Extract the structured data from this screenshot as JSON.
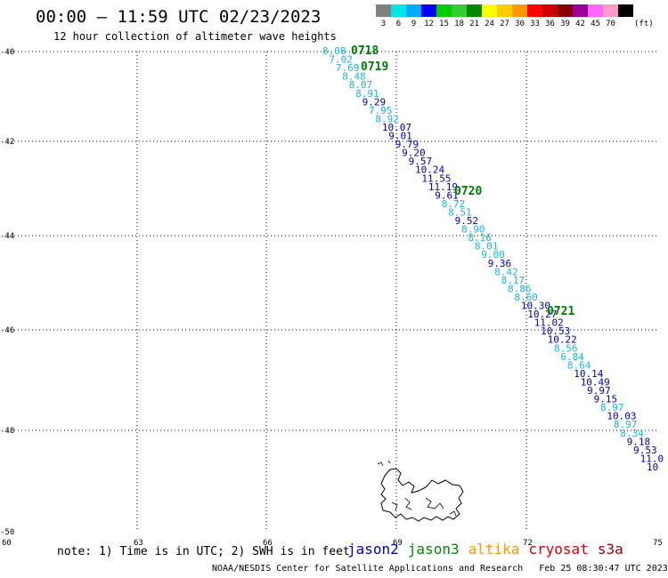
{
  "header": {
    "title": "00:00 – 11:59 UTC 02/23/2023",
    "subtitle": "12 hour collection of altimeter wave heights"
  },
  "scale": {
    "colors": [
      "#808080",
      "#00e5e5",
      "#00aaff",
      "#0000ff",
      "#00cc00",
      "#33cc33",
      "#008800",
      "#ffff00",
      "#ffcc00",
      "#ff9900",
      "#ff0000",
      "#cc0000",
      "#880000",
      "#990099",
      "#ff66ff",
      "#ff99cc",
      "#000000"
    ],
    "labels": [
      "3",
      "6",
      "9",
      "12",
      "15",
      "18",
      "21",
      "24",
      "27",
      "30",
      "33",
      "36",
      "39",
      "42",
      "45",
      "70",
      ""
    ],
    "unit": "(ft)"
  },
  "axes": {
    "lon_labels": [
      "60",
      "63",
      "66",
      "69",
      "72",
      "75"
    ],
    "lat_labels": [
      "-40",
      "-42",
      "-44",
      "-46",
      "-48",
      "-50"
    ]
  },
  "time_marks": [
    "0718",
    "0719",
    "0720",
    "0721"
  ],
  "track": {
    "values": [
      "8.08",
      "7.02",
      "7.69",
      "8.48",
      "8.07",
      "8.91",
      "9.29",
      "7.95",
      "8.92",
      "10.07",
      "9.01",
      "9.79",
      "9.20",
      "9.57",
      "10.24",
      "11.55",
      "11.19",
      "9.61",
      "8.72",
      "8.51",
      "9.52",
      "8.90",
      "8.16",
      "8.01",
      "9.00",
      "9.36",
      "8.42",
      "8.17",
      "8.86",
      "8.60",
      "10.30",
      "10.27",
      "11.02",
      "10.53",
      "10.22",
      "8.56",
      "6.84",
      "8.64",
      "10.14",
      "10.49",
      "9.97",
      "9.15",
      "8.97",
      "10.03",
      "8.97",
      "8.34",
      "9.18",
      "9.53",
      "11.0",
      "10"
    ],
    "colors": [
      "c",
      "c",
      "c",
      "c",
      "c",
      "c",
      "b",
      "c",
      "c",
      "b",
      "b",
      "b",
      "b",
      "b",
      "b",
      "b",
      "b",
      "b",
      "c",
      "c",
      "b",
      "c",
      "c",
      "c",
      "c",
      "b",
      "c",
      "c",
      "c",
      "c",
      "b",
      "b",
      "b",
      "b",
      "b",
      "c",
      "c",
      "c",
      "b",
      "b",
      "b",
      "b",
      "c",
      "b",
      "c",
      "c",
      "b",
      "b",
      "b",
      "b"
    ],
    "palette": {
      "c": "#1ab4e6",
      "b": "#0000b4"
    }
  },
  "note": "note: 1) Time is in UTC; 2) SWH is in feet",
  "satellites": [
    {
      "name": "jason2",
      "color": "#0000cc"
    },
    {
      "name": "jason3",
      "color": "#008800"
    },
    {
      "name": "altika",
      "color": "#ff9900"
    },
    {
      "name": "cryosat",
      "color": "#dd0000"
    },
    {
      "name": "s3a",
      "color": "#990000"
    }
  ],
  "footer": {
    "credit": "NOAA/NESDIS Center for Satellite Applications and Research",
    "timestamp": "Feb 25 08:30:47 UTC 2023"
  }
}
